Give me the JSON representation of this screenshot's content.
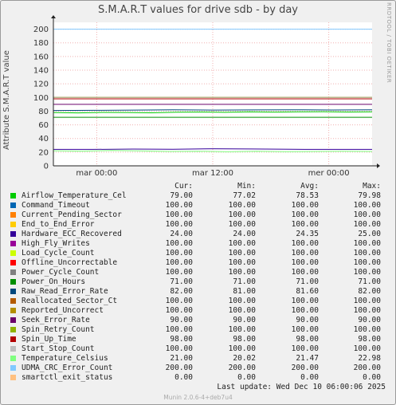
{
  "title": "S.M.A.R.T values for drive sdb - by day",
  "side_label": "RRDTOOL / TOBI OETIKER",
  "footer": "Munin 2.0.6-4+deb7u4",
  "last_update": "Last update: Wed Dec 10 06:00:06 2025",
  "legend_headers": [
    "Cur:",
    "Min:",
    "Avg:",
    "Max:"
  ],
  "chart_data": {
    "type": "line",
    "title": "S.M.A.R.T values for drive sdb - by day",
    "ylabel": "Attribute S.M.A.R.T value",
    "ylim": [
      0,
      210
    ],
    "yticks": [
      0,
      20,
      40,
      60,
      80,
      100,
      120,
      140,
      160,
      180,
      200
    ],
    "xticks": [
      {
        "label": "mar 00:00",
        "pos": 0.136
      },
      {
        "label": "mar 12:00",
        "pos": 0.5
      },
      {
        "label": "mer 00:00",
        "pos": 0.864
      }
    ],
    "grid": true,
    "series": [
      {
        "name": "Airflow_Temperature_Cel",
        "color": "#00cc00",
        "cur": "79.00",
        "min": "77.02",
        "avg": "78.53",
        "max": "79.98",
        "values": [
          78,
          77.5,
          78.2,
          78,
          77.6,
          78.5,
          78.8,
          78.3,
          79,
          78.6,
          79,
          79.2,
          78.7,
          79
        ]
      },
      {
        "name": "Command_Timeout",
        "color": "#0066b3",
        "cur": "100.00",
        "min": "100.00",
        "avg": "100.00",
        "max": "100.00",
        "values": [
          100,
          100
        ]
      },
      {
        "name": "Current_Pending_Sector",
        "color": "#ff8000",
        "cur": "100.00",
        "min": "100.00",
        "avg": "100.00",
        "max": "100.00",
        "values": [
          100,
          100
        ]
      },
      {
        "name": "End_to_End_Error",
        "color": "#ffcc00",
        "cur": "100.00",
        "min": "100.00",
        "avg": "100.00",
        "max": "100.00",
        "values": [
          100,
          100
        ]
      },
      {
        "name": "Hardware_ECC_Recovered",
        "color": "#330099",
        "cur": "24.00",
        "min": "24.00",
        "avg": "24.35",
        "max": "25.00",
        "values": [
          24,
          24,
          24.5,
          24.3,
          25,
          24.6,
          24.2,
          24,
          24
        ]
      },
      {
        "name": "High_Fly_Writes",
        "color": "#990099",
        "cur": "100.00",
        "min": "100.00",
        "avg": "100.00",
        "max": "100.00",
        "values": [
          100,
          100
        ]
      },
      {
        "name": "Load_Cycle_Count",
        "color": "#ccff00",
        "cur": "100.00",
        "min": "100.00",
        "avg": "100.00",
        "max": "100.00",
        "values": [
          100,
          100
        ]
      },
      {
        "name": "Offline_Uncorrectable",
        "color": "#ff0000",
        "cur": "100.00",
        "min": "100.00",
        "avg": "100.00",
        "max": "100.00",
        "values": [
          100,
          100
        ]
      },
      {
        "name": "Power_Cycle_Count",
        "color": "#808080",
        "cur": "100.00",
        "min": "100.00",
        "avg": "100.00",
        "max": "100.00",
        "values": [
          100,
          100
        ]
      },
      {
        "name": "Power_On_Hours",
        "color": "#008f00",
        "cur": "71.00",
        "min": "71.00",
        "avg": "71.00",
        "max": "71.00",
        "values": [
          71,
          71
        ]
      },
      {
        "name": "Raw_Read_Error_Rate",
        "color": "#00487d",
        "cur": "82.00",
        "min": "81.00",
        "avg": "81.60",
        "max": "82.00",
        "values": [
          81,
          81.2,
          81.5,
          82,
          81.6,
          81.8,
          82,
          81.7,
          82
        ]
      },
      {
        "name": "Reallocated_Sector_Ct",
        "color": "#b35a00",
        "cur": "100.00",
        "min": "100.00",
        "avg": "100.00",
        "max": "100.00",
        "values": [
          100,
          100
        ]
      },
      {
        "name": "Reported_Uncorrect",
        "color": "#b38f00",
        "cur": "100.00",
        "min": "100.00",
        "avg": "100.00",
        "max": "100.00",
        "values": [
          100,
          100
        ]
      },
      {
        "name": "Seek_Error_Rate",
        "color": "#6b006b",
        "cur": "90.00",
        "min": "90.00",
        "avg": "90.00",
        "max": "90.00",
        "values": [
          90,
          90
        ]
      },
      {
        "name": "Spin_Retry_Count",
        "color": "#8fb300",
        "cur": "100.00",
        "min": "100.00",
        "avg": "100.00",
        "max": "100.00",
        "values": [
          100,
          100
        ]
      },
      {
        "name": "Spin_Up_Time",
        "color": "#b30000",
        "cur": "98.00",
        "min": "98.00",
        "avg": "98.00",
        "max": "98.00",
        "values": [
          98,
          98
        ]
      },
      {
        "name": "Start_Stop_Count",
        "color": "#bebebe",
        "cur": "100.00",
        "min": "100.00",
        "avg": "100.00",
        "max": "100.00",
        "values": [
          100,
          100
        ]
      },
      {
        "name": "Temperature_Celsius",
        "color": "#80ff80",
        "cur": "21.00",
        "min": "20.02",
        "avg": "21.47",
        "max": "22.98",
        "values": [
          22,
          21.5,
          22.4,
          21.8,
          21,
          21.3,
          20.5,
          21.2,
          20.8,
          21,
          21.4,
          21
        ]
      },
      {
        "name": "UDMA_CRC_Error_Count",
        "color": "#80c9ff",
        "cur": "200.00",
        "min": "200.00",
        "avg": "200.00",
        "max": "200.00",
        "values": [
          200,
          200
        ]
      },
      {
        "name": "smartctl_exit_status",
        "color": "#ffc080",
        "cur": "0.00",
        "min": "0.00",
        "avg": "0.00",
        "max": "0.00",
        "values": [
          0,
          0
        ]
      }
    ]
  }
}
